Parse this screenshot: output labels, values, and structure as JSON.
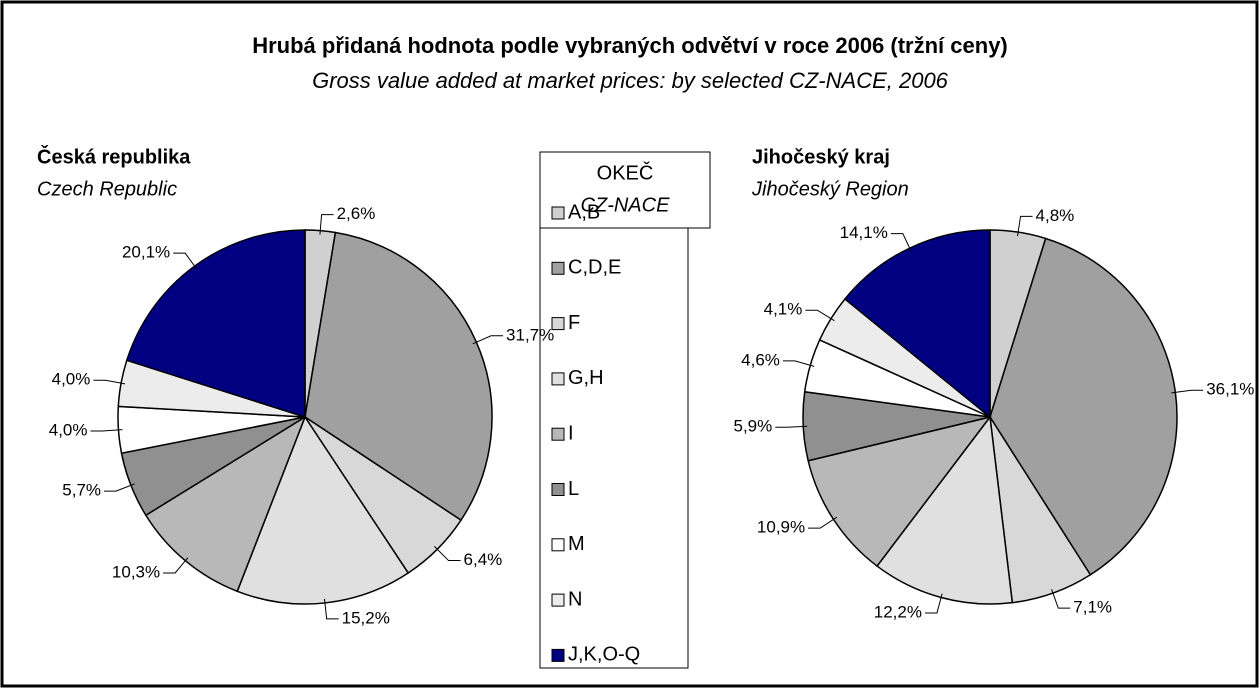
{
  "title": "Hrubá přidaná hodnota podle vybraných odvětví v roce 2006 (tržní ceny)",
  "subtitle": "Gross value added at market prices: by selected CZ-NACE, 2006",
  "legend": {
    "title": [
      "OKEČ",
      "CZ-NACE"
    ],
    "categories": [
      "A,B",
      "C,D,E",
      "F",
      "G,H",
      "I",
      "L",
      "M",
      "N",
      "J,K,O-Q"
    ],
    "colors": [
      "#d0d0d0",
      "#a0a0a0",
      "#d8d8d8",
      "#e0e0e0",
      "#b8b8b8",
      "#909090",
      "#ffffff",
      "#ececec",
      "#000080"
    ]
  },
  "chart_data": [
    {
      "type": "pie",
      "title": "Česká republika",
      "subtitle": "Czech Republic",
      "values": [
        2.6,
        31.7,
        6.4,
        15.2,
        10.3,
        5.7,
        4.0,
        4.0,
        20.1
      ],
      "value_labels": [
        "2,6%",
        "31,7%",
        "6,4%",
        "15,2%",
        "10,3%",
        "5,7%",
        "4,0%",
        "4,0%",
        "20,1%"
      ]
    },
    {
      "type": "pie",
      "title": "Jihočeský kraj",
      "subtitle": "Jihočeský Region",
      "values": [
        4.8,
        36.1,
        7.1,
        12.2,
        10.9,
        5.9,
        4.6,
        4.1,
        14.1
      ],
      "value_labels": [
        "4,8%",
        "36,1%",
        "7,1%",
        "12,2%",
        "10,9%",
        "5,9%",
        "4,6%",
        "4,1%",
        "14,1%"
      ]
    }
  ]
}
